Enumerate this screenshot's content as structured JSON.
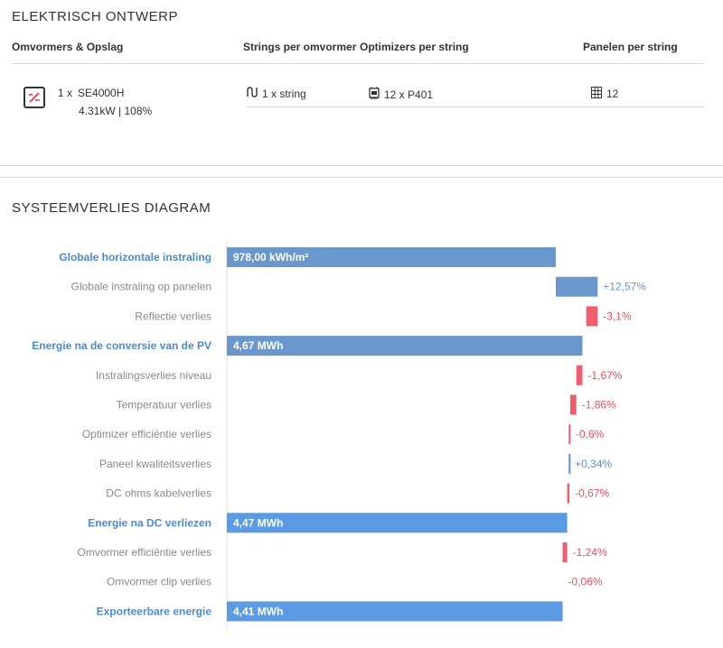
{
  "electrical": {
    "title": "ELEKTRISCH ONTWERP",
    "headers": {
      "inverters": "Omvormers & Opslag",
      "strings": "Strings per omvormer",
      "optimizers": "Optimizers per string",
      "panels": "Panelen per string"
    },
    "row": {
      "inverter_qty": "1 x",
      "inverter_model": "SE4000H",
      "inverter_power": "4.31kW | 108%",
      "strings": "1 x string",
      "optimizers": "12 x P401",
      "panels": "12"
    }
  },
  "chart_data": {
    "type": "bar",
    "title": "SYSTEEMVERLIES DIAGRAM",
    "subtype": "waterfall",
    "xlim": [
      0,
      5.5
    ],
    "rows": [
      {
        "label": "Globale horizontale instraling",
        "kind": "total",
        "start": 0,
        "end": 4.32,
        "text": "978,00 kWh/m²",
        "color": "#6a97cc"
      },
      {
        "label": "Globale instraling op panelen",
        "kind": "delta",
        "start": 4.32,
        "end": 4.87,
        "text": "+12,57%",
        "color": "#6a97cc"
      },
      {
        "label": "Reflectie verlies",
        "kind": "delta",
        "start": 4.87,
        "end": 4.72,
        "text": "-3,1%",
        "color": "#ef5d6e"
      },
      {
        "label": "Energie na de conversie van de PV",
        "kind": "total",
        "start": 0,
        "end": 4.67,
        "text": "4,67 MWh",
        "color": "#6a97cc"
      },
      {
        "label": "Instralingsverlies niveau",
        "kind": "delta",
        "start": 4.67,
        "end": 4.59,
        "text": "-1,67%",
        "color": "#ef5d6e"
      },
      {
        "label": "Temperatuur verlies",
        "kind": "delta",
        "start": 4.59,
        "end": 4.51,
        "text": "-1,86%",
        "color": "#ef5d6e"
      },
      {
        "label": "Optimizer efficiëntie verlies",
        "kind": "delta",
        "start": 4.51,
        "end": 4.49,
        "text": "-0,6%",
        "color": "#ef5d6e"
      },
      {
        "label": "Paneel kwaliteitsverlies",
        "kind": "delta",
        "start": 4.49,
        "end": 4.5,
        "text": "+0,34%",
        "color": "#5b8fd6"
      },
      {
        "label": "DC ohms kabelverlies",
        "kind": "delta",
        "start": 4.5,
        "end": 4.47,
        "text": "-0,67%",
        "color": "#ef5d6e"
      },
      {
        "label": "Energie na DC verliezen",
        "kind": "total",
        "start": 0,
        "end": 4.47,
        "text": "4,47 MWh",
        "color": "#5b9be5"
      },
      {
        "label": "Omvormer efficiëntie verlies",
        "kind": "delta",
        "start": 4.47,
        "end": 4.41,
        "text": "-1,24%",
        "color": "#ef5d6e"
      },
      {
        "label": "Omvormer clip verlies",
        "kind": "delta",
        "start": 4.41,
        "end": 4.41,
        "text": "-0,06%",
        "color": "#ef5d6e"
      },
      {
        "label": "Exporteerbare energie",
        "kind": "total",
        "start": 0,
        "end": 4.41,
        "text": "4,41 MWh",
        "color": "#5b9be5"
      }
    ]
  }
}
